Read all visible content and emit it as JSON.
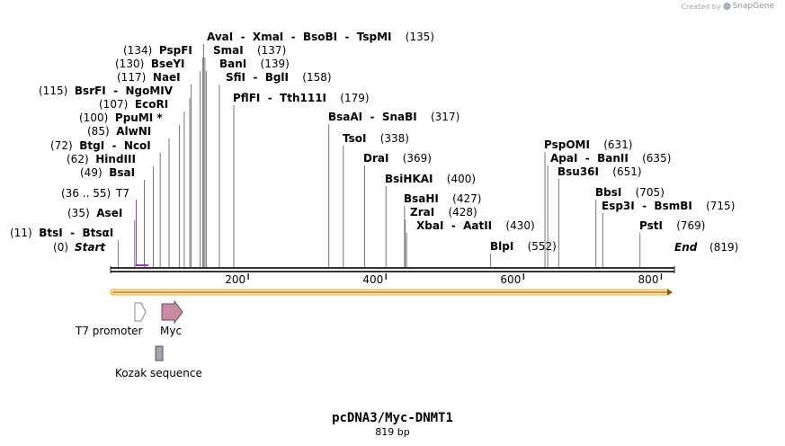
{
  "header": {
    "credit_prefix": "Created by",
    "brand": "SnapGene",
    "logo_icon": "snapgene-logo-icon"
  },
  "map": {
    "title": "pcDNA3/Myc-DNMT1",
    "length_label": "819 bp",
    "length_bp": 819,
    "ruler": [
      200,
      400,
      600,
      800
    ],
    "sequence_color": "#333333",
    "orf_color": "#f5a623"
  },
  "sites": [
    {
      "name": "BtsI",
      "partner": "BtsαI",
      "pos": "11",
      "bp": 11
    },
    {
      "name": "AseI",
      "pos": "35",
      "bp": 35
    },
    {
      "name": "BsaI",
      "pos": "49",
      "bp": 49
    },
    {
      "name": "HindIII",
      "pos": "62",
      "bp": 62
    },
    {
      "name": "BtgI",
      "partner": "NcoI",
      "pos": "72",
      "bp": 72
    },
    {
      "name": "AlwNI",
      "pos": "85",
      "bp": 85
    },
    {
      "name": "PpuMI *",
      "pos": "100",
      "bp": 100
    },
    {
      "name": "EcoRI",
      "pos": "107",
      "bp": 107
    },
    {
      "name": "BsrFI",
      "partner": "NgoMIV",
      "pos": "115",
      "bp": 115
    },
    {
      "name": "NaeI",
      "pos": "117",
      "bp": 117
    },
    {
      "name": "BseYI",
      "pos": "130",
      "bp": 130
    },
    {
      "name": "PspFI",
      "pos": "134",
      "bp": 134
    },
    {
      "name": "AvaI",
      "partner": "XmaI",
      "partner2": "BsoBI",
      "partner3": "TspMI",
      "pos": "135",
      "bp": 135
    },
    {
      "name": "SmaI",
      "pos": "137",
      "bp": 137
    },
    {
      "name": "BanI",
      "pos": "139",
      "bp": 139
    },
    {
      "name": "SfiI",
      "partner": "BglI",
      "pos": "158",
      "bp": 158
    },
    {
      "name": "PflFI",
      "partner": "Tth111I",
      "pos": "179",
      "bp": 179
    },
    {
      "name": "BsaAI",
      "partner": "SnaBI",
      "pos": "317",
      "bp": 317
    },
    {
      "name": "TsoI",
      "pos": "338",
      "bp": 338
    },
    {
      "name": "DraI",
      "pos": "369",
      "bp": 369
    },
    {
      "name": "BsiHKAI",
      "pos": "400",
      "bp": 400
    },
    {
      "name": "BsaHI",
      "pos": "427",
      "bp": 427
    },
    {
      "name": "ZraI",
      "pos": "428",
      "bp": 428
    },
    {
      "name": "XbaI",
      "partner": "AatII",
      "pos": "430",
      "bp": 430
    },
    {
      "name": "BlpI",
      "pos": "552",
      "bp": 552
    },
    {
      "name": "PspOMI",
      "pos": "631",
      "bp": 631
    },
    {
      "name": "ApaI",
      "partner": "BanII",
      "pos": "635",
      "bp": 635
    },
    {
      "name": "Bsu36I",
      "pos": "651",
      "bp": 651
    },
    {
      "name": "BbsI",
      "pos": "705",
      "bp": 705
    },
    {
      "name": "Esp3I",
      "partner": "BsmBI",
      "pos": "715",
      "bp": 715
    },
    {
      "name": "PstI",
      "pos": "769",
      "bp": 769
    }
  ],
  "ends": {
    "start_label": "Start",
    "start_pos": "0",
    "end_label": "End",
    "end_pos": "819"
  },
  "primer": {
    "range": "(36 .. 55)",
    "name": "T7",
    "color": "#9b30c8",
    "from_bp": 36,
    "to_bp": 55
  },
  "features": [
    {
      "name": "T7 promoter",
      "type": "promoter",
      "color": "#ffffff"
    },
    {
      "name": "Myc",
      "type": "tag",
      "color": "#c98aa3"
    },
    {
      "name": "Kozak sequence",
      "type": "misc",
      "color": "#a0a4ad"
    }
  ]
}
